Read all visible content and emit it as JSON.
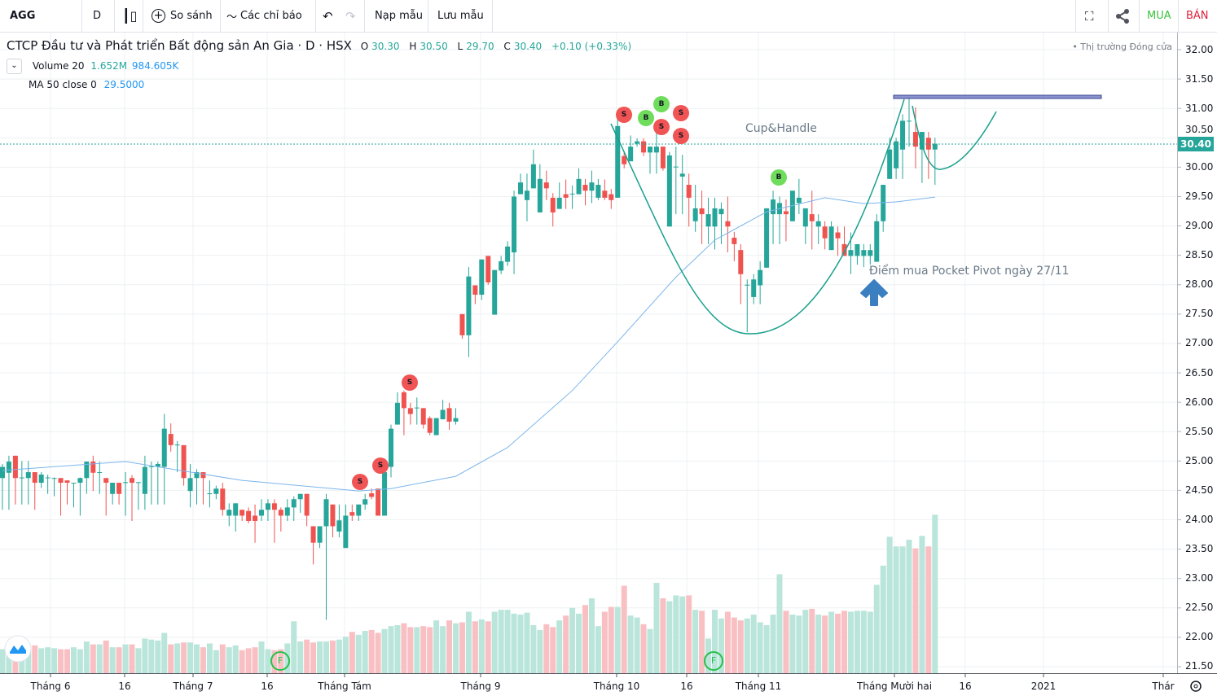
{
  "toolbar": {
    "symbol": "AGG",
    "interval": "D",
    "compare": "So sánh",
    "indicators": "Các chỉ báo",
    "load_template": "Nạp mẫu",
    "save_template": "Lưu mẫu",
    "buy": "MUA",
    "sell": "BÁN",
    "icons": [
      "candlestick-icon",
      "plus-circle-icon",
      "indicators-icon",
      "undo-icon",
      "redo-icon",
      "fullscreen-icon",
      "share-icon"
    ]
  },
  "legend": {
    "title": "CTCP Đầu tư và Phát triển Bất động sản An Gia · D · HSX",
    "open_label": "O",
    "open": "30.30",
    "high_label": "H",
    "high": "30.50",
    "low_label": "L",
    "low": "29.70",
    "close_label": "C",
    "close": "30.40",
    "change": "+0.10 (+0.33%)",
    "volume_label": "Volume 20",
    "volume_value": "1.652M",
    "volume_ma": "984.605K",
    "ma_label": "MA 50 close 0",
    "ma_value": "29.5000"
  },
  "market_status": "• Thị trường Đóng cửa",
  "current_price_label": "30.40",
  "annotations": {
    "pattern": "Cup&Handle",
    "pivot": "Điểm mua Pocket Pivot ngày 27/11"
  },
  "markers": [
    "S",
    "S",
    "S",
    "S",
    "B",
    "B",
    "S",
    "S",
    "S",
    "B",
    "F",
    "F"
  ],
  "colors": {
    "up": "#26a69a",
    "down": "#ef5350",
    "ma": "#7cb5ec",
    "volume_up": "#b9e5da",
    "volume_down": "#f9c0c4",
    "drawing": "#1aa08d",
    "level": "#5f6bb5",
    "arrow": "#3c7fc1"
  },
  "chart_data": {
    "type": "candlestick",
    "title": "AGG · D · HSX",
    "ylim": [
      21.5,
      32.0
    ],
    "y_ticks": [
      "32.00",
      "31.50",
      "31.00",
      "30.50",
      "30.00",
      "29.50",
      "29.00",
      "28.50",
      "28.00",
      "27.50",
      "27.00",
      "26.50",
      "26.00",
      "25.50",
      "25.00",
      "24.50",
      "24.00",
      "23.50",
      "23.00",
      "22.50",
      "22.00",
      "21.50"
    ],
    "x_ticks": [
      "Tháng 6",
      "16",
      "Tháng 7",
      "16",
      "Tháng Tám",
      "Tháng 9",
      "Tháng 10",
      "16",
      "Tháng 11",
      "Tháng Mười hai",
      "16",
      "2021",
      "Thár"
    ],
    "grid": true,
    "ohlc": [
      [
        24.71,
        24.95,
        24.17,
        24.9
      ],
      [
        24.8,
        25.09,
        24.17,
        24.99
      ],
      [
        25.09,
        25.09,
        24.26,
        24.71
      ],
      [
        24.71,
        25.0,
        24.26,
        24.72
      ],
      [
        24.71,
        25.0,
        24.26,
        24.81
      ],
      [
        24.81,
        24.81,
        24.17,
        24.63
      ],
      [
        24.63,
        24.81,
        24.54,
        24.77
      ],
      [
        24.71,
        24.77,
        24.44,
        24.72
      ],
      [
        24.71,
        24.72,
        24.4,
        24.71
      ],
      [
        24.71,
        24.71,
        24.07,
        24.63
      ],
      [
        24.67,
        24.67,
        24.26,
        24.63
      ],
      [
        24.63,
        24.63,
        24.21,
        24.63
      ],
      [
        24.63,
        24.72,
        24.07,
        24.71
      ],
      [
        24.71,
        24.99,
        24.44,
        24.99
      ],
      [
        24.99,
        25.09,
        24.49,
        24.8
      ],
      [
        24.81,
        24.99,
        24.44,
        24.81
      ],
      [
        24.71,
        24.71,
        24.07,
        24.63
      ],
      [
        24.44,
        24.63,
        24.26,
        24.63
      ],
      [
        24.63,
        24.63,
        24.26,
        24.44
      ],
      [
        24.63,
        24.81,
        24.07,
        24.64
      ],
      [
        24.71,
        24.76,
        23.98,
        24.63
      ],
      [
        24.63,
        24.63,
        24.17,
        24.64
      ],
      [
        24.44,
        25.09,
        24.17,
        24.9
      ],
      [
        24.9,
        24.99,
        24.26,
        24.91
      ],
      [
        24.9,
        24.99,
        24.26,
        24.95
      ],
      [
        24.9,
        25.8,
        24.26,
        25.55
      ],
      [
        25.46,
        25.64,
        25.16,
        25.27
      ],
      [
        25.27,
        25.34,
        24.81,
        25.28
      ],
      [
        25.27,
        25.27,
        24.58,
        24.71
      ],
      [
        24.49,
        24.95,
        24.21,
        24.71
      ],
      [
        24.71,
        24.86,
        24.26,
        24.81
      ],
      [
        24.81,
        24.81,
        24.26,
        24.71
      ],
      [
        24.44,
        24.67,
        24.21,
        24.45
      ],
      [
        24.44,
        24.58,
        24.35,
        24.53
      ],
      [
        24.53,
        24.63,
        24.07,
        24.17
      ],
      [
        24.07,
        24.28,
        23.89,
        24.17
      ],
      [
        24.07,
        24.28,
        23.8,
        24.28
      ],
      [
        24.17,
        24.17,
        23.98,
        24.07
      ],
      [
        24.15,
        24.21,
        23.94,
        23.98
      ],
      [
        24.07,
        24.26,
        23.61,
        23.98
      ],
      [
        24.07,
        24.35,
        23.98,
        24.17
      ],
      [
        24.17,
        24.35,
        23.98,
        24.28
      ],
      [
        24.28,
        24.35,
        23.61,
        24.17
      ],
      [
        24.17,
        24.21,
        23.8,
        24.07
      ],
      [
        24.07,
        24.35,
        23.98,
        24.21
      ],
      [
        24.21,
        24.4,
        23.98,
        24.35
      ],
      [
        24.35,
        24.44,
        24.12,
        24.44
      ],
      [
        24.44,
        24.44,
        23.89,
        24.07
      ],
      [
        23.89,
        23.89,
        23.24,
        23.61
      ],
      [
        23.61,
        23.89,
        23.52,
        23.89
      ],
      [
        23.89,
        24.44,
        22.3,
        24.35
      ],
      [
        24.26,
        24.26,
        23.7,
        23.89
      ],
      [
        23.8,
        24.26,
        23.7,
        23.99
      ],
      [
        23.52,
        24.26,
        23.52,
        24.07
      ],
      [
        24.13,
        24.26,
        23.98,
        24.07
      ],
      [
        24.07,
        24.26,
        23.98,
        24.26
      ],
      [
        24.26,
        24.44,
        24.17,
        24.35
      ],
      [
        24.45,
        24.53,
        24.35,
        24.39
      ],
      [
        24.53,
        24.53,
        24.07,
        24.07
      ],
      [
        24.07,
        24.81,
        24.07,
        24.81
      ],
      [
        24.9,
        25.62,
        24.72,
        25.55
      ],
      [
        25.62,
        26.17,
        25.62,
        25.99
      ],
      [
        26.17,
        26.2,
        25.44,
        25.9
      ],
      [
        25.9,
        25.99,
        25.62,
        25.8
      ],
      [
        25.9,
        26.08,
        25.62,
        25.91
      ],
      [
        25.9,
        25.9,
        25.55,
        25.62
      ],
      [
        25.73,
        25.76,
        25.44,
        25.48
      ],
      [
        25.44,
        25.73,
        25.44,
        25.73
      ],
      [
        25.71,
        26.04,
        25.71,
        25.87
      ],
      [
        25.9,
        25.99,
        25.53,
        25.67
      ],
      [
        25.67,
        25.9,
        25.62,
        25.73
      ],
      [
        27.5,
        27.5,
        27.08,
        27.14
      ],
      [
        27.14,
        28.3,
        26.77,
        28.14
      ],
      [
        27.99,
        27.99,
        27.67,
        27.83
      ],
      [
        27.83,
        28.43,
        27.74,
        28.43
      ],
      [
        28.49,
        28.49,
        28.0,
        28.04
      ],
      [
        27.49,
        28.25,
        27.49,
        28.25
      ],
      [
        28.24,
        28.49,
        28.18,
        28.4
      ],
      [
        28.39,
        28.74,
        28.32,
        28.65
      ],
      [
        28.55,
        29.6,
        28.18,
        29.5
      ],
      [
        29.54,
        29.89,
        29.54,
        29.74
      ],
      [
        29.44,
        29.89,
        29.08,
        29.6
      ],
      [
        29.64,
        30.3,
        29.64,
        30.05
      ],
      [
        29.23,
        30.05,
        29.23,
        29.8
      ],
      [
        29.74,
        29.94,
        29.44,
        29.64
      ],
      [
        29.48,
        29.56,
        28.99,
        29.23
      ],
      [
        29.29,
        29.74,
        29.29,
        29.48
      ],
      [
        29.54,
        29.79,
        29.29,
        29.48
      ],
      [
        29.54,
        29.69,
        29.29,
        29.55
      ],
      [
        29.54,
        29.98,
        29.54,
        29.8
      ],
      [
        29.7,
        29.8,
        29.35,
        29.6
      ],
      [
        29.6,
        29.94,
        29.39,
        29.74
      ],
      [
        29.48,
        29.8,
        29.44,
        29.7
      ],
      [
        29.6,
        29.79,
        29.44,
        29.48
      ],
      [
        29.54,
        29.63,
        29.29,
        29.44
      ],
      [
        29.48,
        30.84,
        29.48,
        30.7
      ],
      [
        30.19,
        30.26,
        29.98,
        30.05
      ],
      [
        30.1,
        30.54,
        30.1,
        30.35
      ],
      [
        30.4,
        30.49,
        30.35,
        30.44
      ],
      [
        30.44,
        30.49,
        30.19,
        30.25
      ],
      [
        30.25,
        30.35,
        29.89,
        30.35
      ],
      [
        30.25,
        30.63,
        29.89,
        30.35
      ],
      [
        30.35,
        30.35,
        29.94,
        29.98
      ],
      [
        28.99,
        30.26,
        28.99,
        30.2
      ],
      [
        30.0,
        30.35,
        29.2,
        30.01
      ],
      [
        29.84,
        30.21,
        29.2,
        29.89
      ],
      [
        29.7,
        29.89,
        28.99,
        29.48
      ],
      [
        29.08,
        29.7,
        28.9,
        29.3
      ],
      [
        29.3,
        29.6,
        28.69,
        29.2
      ],
      [
        28.99,
        29.48,
        28.69,
        29.2
      ],
      [
        28.99,
        29.48,
        28.6,
        29.3
      ],
      [
        29.2,
        29.4,
        28.69,
        29.29
      ],
      [
        29.08,
        29.5,
        28.55,
        28.99
      ],
      [
        28.8,
        28.9,
        28.4,
        28.69
      ],
      [
        28.59,
        28.69,
        27.67,
        28.18
      ],
      [
        27.99,
        28.09,
        27.19,
        28.0
      ],
      [
        27.79,
        28.18,
        27.67,
        28.09
      ],
      [
        27.99,
        28.4,
        27.67,
        28.25
      ],
      [
        28.29,
        29.3,
        28.29,
        29.3
      ],
      [
        29.2,
        29.6,
        28.69,
        29.45
      ],
      [
        29.2,
        29.5,
        28.69,
        29.39
      ],
      [
        29.25,
        29.45,
        28.74,
        29.2
      ],
      [
        29.08,
        29.6,
        29.08,
        29.6
      ],
      [
        29.39,
        29.8,
        29.2,
        29.48
      ],
      [
        28.99,
        29.3,
        28.69,
        29.3
      ],
      [
        29.2,
        29.6,
        28.6,
        29.08
      ],
      [
        28.99,
        29.2,
        28.69,
        29.08
      ],
      [
        28.99,
        29.08,
        28.6,
        28.79
      ],
      [
        28.59,
        29.08,
        28.59,
        28.99
      ],
      [
        28.89,
        28.99,
        28.49,
        28.79
      ],
      [
        28.69,
        28.99,
        28.49,
        28.49
      ],
      [
        28.49,
        28.89,
        28.18,
        28.59
      ],
      [
        28.49,
        28.69,
        28.34,
        28.69
      ],
      [
        28.49,
        28.69,
        28.3,
        28.59
      ],
      [
        28.49,
        28.69,
        28.34,
        28.59
      ],
      [
        28.39,
        29.2,
        28.39,
        29.08
      ],
      [
        29.08,
        29.7,
        28.9,
        29.7
      ],
      [
        29.8,
        30.5,
        29.8,
        30.3
      ],
      [
        29.98,
        30.5,
        29.8,
        30.44
      ],
      [
        30.3,
        30.9,
        29.8,
        30.79
      ],
      [
        30.78,
        31.2,
        30.35,
        30.79
      ],
      [
        30.6,
        31.02,
        29.98,
        30.35
      ],
      [
        30.3,
        30.6,
        29.73,
        30.6
      ],
      [
        30.5,
        30.6,
        29.8,
        30.3
      ],
      [
        30.3,
        30.5,
        29.7,
        30.4
      ]
    ],
    "volume_millions": [
      0.25,
      0.24,
      0.27,
      0.24,
      0.25,
      0.29,
      0.26,
      0.27,
      0.26,
      0.25,
      0.25,
      0.27,
      0.25,
      0.33,
      0.3,
      0.3,
      0.34,
      0.27,
      0.27,
      0.3,
      0.3,
      0.26,
      0.36,
      0.35,
      0.34,
      0.42,
      0.3,
      0.31,
      0.32,
      0.32,
      0.3,
      0.27,
      0.31,
      0.24,
      0.3,
      0.27,
      0.29,
      0.24,
      0.26,
      0.27,
      0.33,
      0.25,
      0.24,
      0.25,
      0.31,
      0.54,
      0.33,
      0.35,
      0.32,
      0.33,
      0.33,
      0.34,
      0.35,
      0.38,
      0.43,
      0.4,
      0.44,
      0.45,
      0.42,
      0.46,
      0.49,
      0.5,
      0.52,
      0.48,
      0.48,
      0.49,
      0.48,
      0.55,
      0.49,
      0.55,
      0.52,
      0.53,
      0.64,
      0.54,
      0.56,
      0.54,
      0.64,
      0.66,
      0.66,
      0.62,
      0.61,
      0.63,
      0.5,
      0.45,
      0.51,
      0.48,
      0.55,
      0.6,
      0.68,
      0.62,
      0.71,
      0.78,
      0.49,
      0.64,
      0.69,
      0.69,
      0.91,
      0.6,
      0.58,
      0.51,
      0.46,
      0.94,
      0.78,
      0.75,
      0.81,
      0.8,
      0.81,
      0.66,
      0.65,
      0.36,
      0.66,
      0.57,
      0.64,
      0.58,
      0.55,
      0.57,
      0.61,
      0.53,
      0.5,
      0.61,
      1.03,
      0.65,
      0.61,
      0.6,
      0.66,
      0.67,
      0.61,
      0.6,
      0.64,
      0.62,
      0.65,
      0.64,
      0.65,
      0.65,
      0.64,
      0.92,
      1.12,
      1.42,
      1.32,
      1.32,
      1.39,
      1.3,
      1.43,
      1.32,
      1.65
    ],
    "ma50": [
      [
        0,
        24.84
      ],
      [
        19,
        24.99
      ],
      [
        37,
        24.67
      ],
      [
        55,
        24.49
      ],
      [
        60,
        24.53
      ],
      [
        70,
        24.74
      ],
      [
        78,
        25.23
      ],
      [
        88,
        26.2
      ],
      [
        95,
        27.03
      ],
      [
        104,
        28.13
      ],
      [
        110,
        28.76
      ],
      [
        118,
        29.24
      ],
      [
        127,
        29.48
      ],
      [
        133,
        29.38
      ],
      [
        138,
        29.41
      ],
      [
        144,
        29.49
      ]
    ],
    "last_price": 30.4,
    "resistance_level": 31.2
  }
}
